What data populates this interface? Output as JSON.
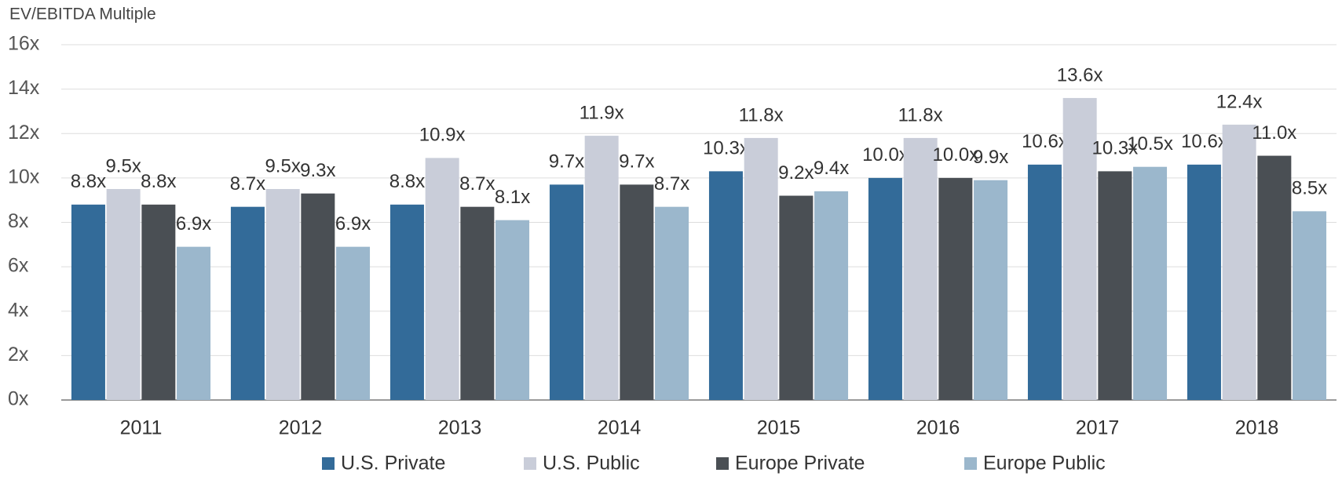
{
  "chart_data": {
    "type": "bar",
    "title": "EV/EBITDA Multiple",
    "categories": [
      "2011",
      "2012",
      "2013",
      "2014",
      "2015",
      "2016",
      "2017",
      "2018"
    ],
    "series": [
      {
        "name": "U.S. Private",
        "color": "#336b99",
        "values": [
          8.8,
          8.7,
          8.8,
          9.7,
          10.3,
          10.0,
          10.6,
          10.6
        ],
        "value_labels": [
          "8.8x",
          "8.7x",
          "8.8x",
          "9.7x",
          "10.3x",
          "10.0x",
          "10.6x",
          "10.6x"
        ]
      },
      {
        "name": "U.S. Public",
        "color": "#c9cdd9",
        "values": [
          9.5,
          9.5,
          10.9,
          11.9,
          11.8,
          11.8,
          13.6,
          12.4
        ],
        "value_labels": [
          "9.5x",
          "9.5x",
          "10.9x",
          "11.9x",
          "11.8x",
          "11.8x",
          "13.6x",
          "12.4x"
        ]
      },
      {
        "name": "Europe Private",
        "color": "#4a4f54",
        "values": [
          8.8,
          9.3,
          8.7,
          9.7,
          9.2,
          10.0,
          10.3,
          11.0
        ],
        "value_labels": [
          "8.8x",
          "9.3x",
          "8.7x",
          "9.7x",
          "9.2x",
          "10.0x",
          "10.3x",
          "11.0x"
        ]
      },
      {
        "name": "Europe Public",
        "color": "#9bb7cc",
        "values": [
          6.9,
          6.9,
          8.1,
          8.7,
          9.4,
          9.9,
          10.5,
          8.5
        ],
        "value_labels": [
          "6.9x",
          "6.9x",
          "8.1x",
          "8.7x",
          "9.4x",
          "9.9x",
          "10.5x",
          "8.5x"
        ]
      }
    ],
    "ylim": [
      0,
      16
    ],
    "yticks": [
      {
        "value": 0,
        "label": "0x"
      },
      {
        "value": 2,
        "label": "2x"
      },
      {
        "value": 4,
        "label": "4x"
      },
      {
        "value": 6,
        "label": "6x"
      },
      {
        "value": 8,
        "label": "8x"
      },
      {
        "value": 10,
        "label": "10x"
      },
      {
        "value": 12,
        "label": "12x"
      },
      {
        "value": 14,
        "label": "14x"
      },
      {
        "value": 16,
        "label": "16x"
      }
    ],
    "grid": true,
    "legend": "bottom"
  }
}
